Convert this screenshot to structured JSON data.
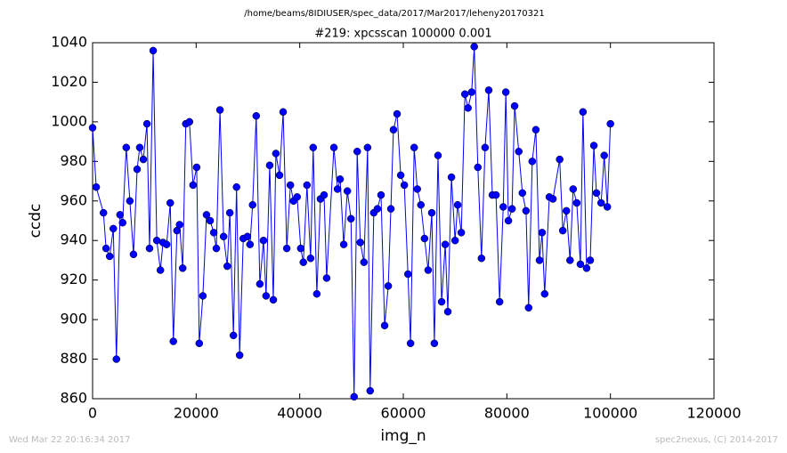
{
  "chart_data": {
    "type": "line",
    "suptitle": "/home/beams/8IDIUSER/spec_data/2017/Mar2017/leheny20170321",
    "title": "#219: xpcsscan 100000 0.001",
    "xlabel": "img_n",
    "ylabel": "ccdc",
    "footer_left": "Wed Mar 22 20:16:34 2017",
    "footer_right": "spec2nexus, (C) 2014-2017",
    "color": "#0000ff",
    "xlim": [
      0,
      120000
    ],
    "xticks": [
      0,
      20000,
      40000,
      60000,
      80000,
      100000,
      120000
    ],
    "ylim": [
      860,
      1040
    ],
    "yticks": [
      860,
      880,
      900,
      920,
      940,
      960,
      980,
      1000,
      1020,
      1040
    ],
    "x": [
      0,
      700,
      2100,
      2600,
      3300,
      4000,
      4600,
      5300,
      5800,
      6500,
      7200,
      7900,
      8600,
      9100,
      9800,
      10500,
      11000,
      11700,
      12400,
      13100,
      13600,
      14300,
      15000,
      15600,
      16300,
      16800,
      17400,
      18000,
      18700,
      19400,
      20100,
      20600,
      21300,
      22000,
      22700,
      23400,
      23900,
      24600,
      25300,
      26000,
      26500,
      27200,
      27800,
      28400,
      29100,
      29900,
      30400,
      30900,
      31600,
      32300,
      33000,
      33500,
      34200,
      34900,
      35400,
      36100,
      36800,
      37500,
      38200,
      38800,
      39500,
      40200,
      40700,
      41400,
      42100,
      42600,
      43300,
      44000,
      44700,
      45200,
      46600,
      47300,
      47800,
      48500,
      49200,
      49900,
      50500,
      51100,
      51700,
      52400,
      53100,
      53600,
      54300,
      55000,
      55700,
      56400,
      57100,
      57600,
      58100,
      58800,
      59500,
      60200,
      60900,
      61400,
      62100,
      62700,
      63400,
      64100,
      64800,
      65500,
      66000,
      66700,
      67400,
      68100,
      68600,
      69300,
      70000,
      70500,
      71200,
      71900,
      72500,
      73200,
      73700,
      74400,
      75100,
      75800,
      76500,
      77200,
      77900,
      78600,
      79300,
      79800,
      80300,
      81000,
      81500,
      82300,
      83000,
      83700,
      84200,
      84900,
      85600,
      86300,
      86800,
      87300,
      88200,
      88900,
      90200,
      90800,
      91500,
      92200,
      92800,
      93500,
      94200,
      94700,
      95400,
      96100,
      96800,
      97300,
      98200,
      98800,
      99400,
      100000
    ],
    "values": [
      997,
      967,
      954,
      936,
      932,
      946,
      880,
      953,
      949,
      987,
      960,
      933,
      976,
      987,
      981,
      999,
      936,
      1036,
      940,
      925,
      939,
      938,
      959,
      889,
      945,
      948,
      926,
      999,
      1000,
      968,
      977,
      888,
      912,
      953,
      950,
      944,
      936,
      1006,
      942,
      927,
      954,
      892,
      967,
      882,
      941,
      942,
      938,
      958,
      1003,
      918,
      940,
      912,
      978,
      910,
      984,
      973,
      1005,
      936,
      968,
      960,
      962,
      936,
      929,
      968,
      931,
      987,
      913,
      961,
      963,
      921,
      987,
      966,
      971,
      938,
      965,
      951,
      861,
      985,
      939,
      929,
      987,
      864,
      954,
      956,
      963,
      897,
      917,
      956,
      996,
      1004,
      973,
      968,
      923,
      888,
      987,
      966,
      958,
      941,
      925,
      954,
      888,
      983,
      909,
      938,
      904,
      972,
      940,
      958,
      944,
      1014,
      1007,
      1015,
      1038,
      977,
      931,
      987,
      1016,
      963,
      963,
      909,
      957,
      1015,
      950,
      956,
      1008,
      985,
      964,
      955,
      906,
      980,
      996,
      930,
      944,
      913,
      962,
      961,
      981,
      945,
      955,
      930,
      966,
      959,
      928,
      1005,
      926,
      930,
      988,
      964,
      959,
      983,
      957,
      999
    ]
  }
}
